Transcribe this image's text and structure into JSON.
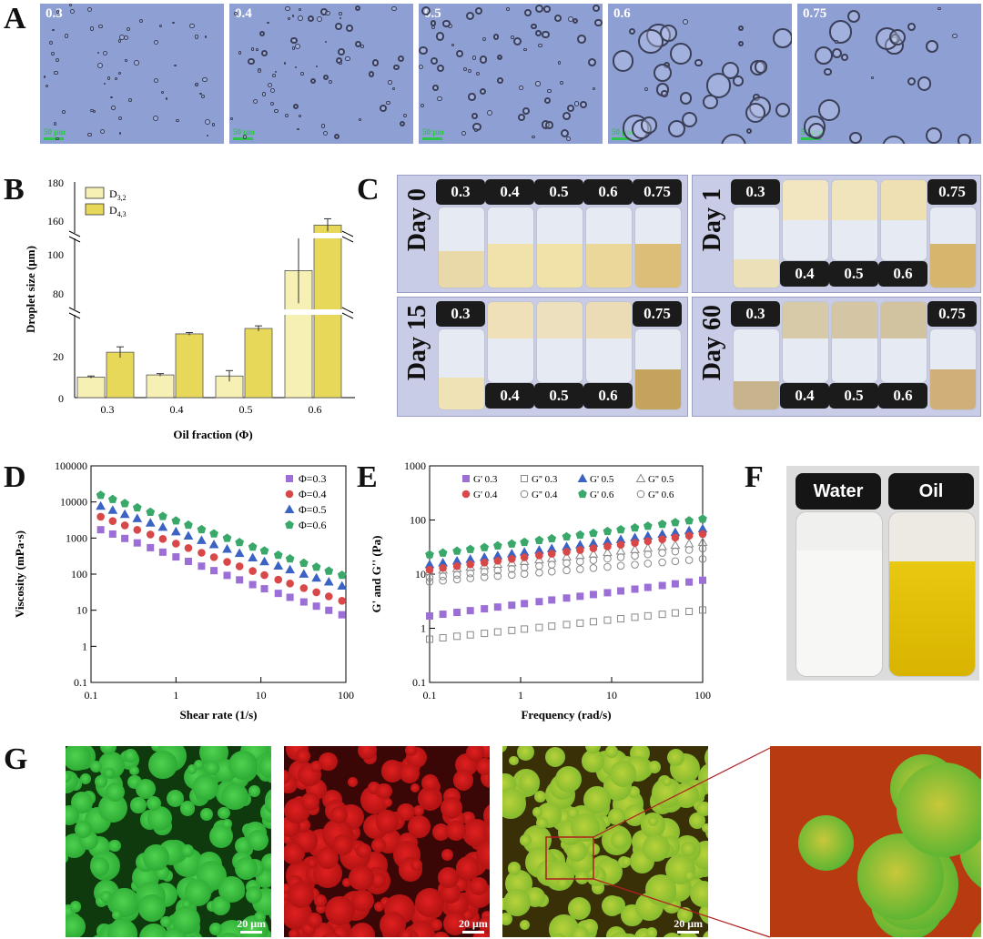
{
  "figure": {
    "panel_labels": {
      "a": "A",
      "b": "B",
      "c": "C",
      "d": "D",
      "e": "E",
      "f": "F",
      "g": "G"
    },
    "panel_a": {
      "images": [
        {
          "label": "0.3",
          "scale_bar": "50 μm"
        },
        {
          "label": "0.4",
          "scale_bar": "50 μm"
        },
        {
          "label": "0.5",
          "scale_bar": "50 μm"
        },
        {
          "label": "0.6",
          "scale_bar": "50 μm"
        },
        {
          "label": "0.75",
          "scale_bar": "50 μm"
        }
      ]
    },
    "panel_c": {
      "groups": [
        {
          "day": "Day 0",
          "caps": [
            "0.3",
            "0.4",
            "0.5",
            "0.6",
            "0.75"
          ]
        },
        {
          "day": "Day 1",
          "caps": [
            "0.3",
            "0.4",
            "0.5",
            "0.6",
            "0.75"
          ]
        },
        {
          "day": "Day 15",
          "caps": [
            "0.3",
            "0.4",
            "0.5",
            "0.6",
            "0.75"
          ]
        },
        {
          "day": "Day 60",
          "caps": [
            "0.3",
            "0.4",
            "0.5",
            "0.6",
            "0.75"
          ]
        }
      ]
    },
    "panel_f": {
      "water": "Water",
      "oil": "Oil"
    },
    "panel_g": {
      "scale_bars": [
        "20 μm",
        "20 μm",
        "20 μm"
      ]
    },
    "colors": {
      "micro_bg": "#8e9fd4",
      "bar_d32": "#f6f0b4",
      "bar_d43": "#e8d85a",
      "green": "#2aa43a",
      "red": "#c41212"
    }
  },
  "chart_data": [
    {
      "id": "B",
      "type": "bar",
      "xlabel": "Oil fraction (Φ)",
      "ylabel": "Droplet size (μm)",
      "categories": [
        "0.3",
        "0.4",
        "0.5",
        "0.6"
      ],
      "legend": [
        "D3,2",
        "D4,3"
      ],
      "series": [
        {
          "name": "D3,2",
          "values": [
            9.5,
            10.5,
            10,
            89
          ],
          "errors": [
            0.5,
            0.6,
            2.5,
            15
          ]
        },
        {
          "name": "D4,3",
          "values": [
            21,
            29.5,
            32,
            160
          ],
          "errors": [
            2.5,
            0.6,
            1.2,
            3
          ]
        }
      ],
      "yticks": [
        "0",
        "20",
        "80",
        "100",
        "160",
        "180"
      ],
      "ylim_segments": [
        [
          0,
          40
        ],
        [
          70,
          105
        ],
        [
          155,
          180
        ]
      ]
    },
    {
      "id": "D",
      "type": "scatter",
      "xlabel": "Shear rate (1/s)",
      "ylabel": "Viscosity (mPa·s)",
      "xscale": "log",
      "yscale": "log",
      "xlim": [
        0.1,
        100
      ],
      "ylim": [
        0.1,
        100000
      ],
      "xticks": [
        "0.1",
        "1",
        "10",
        "100"
      ],
      "yticks": [
        "0.1",
        "1",
        "10",
        "100",
        "1000",
        "10000",
        "100000"
      ],
      "series": [
        {
          "name": "Φ=0.3",
          "color": "#9b6fd6",
          "marker": "square",
          "a": 300,
          "n": -0.85
        },
        {
          "name": "Φ=0.4",
          "color": "#d94848",
          "marker": "circle",
          "a": 700,
          "n": -0.84
        },
        {
          "name": "Φ=0.5",
          "color": "#3b63c4",
          "marker": "triangle",
          "a": 1500,
          "n": -0.8
        },
        {
          "name": "Φ=0.6",
          "color": "#3aa86a",
          "marker": "pentagon",
          "a": 3000,
          "n": -0.8
        }
      ],
      "x_points": [
        0.13,
        0.18,
        0.25,
        0.35,
        0.5,
        0.7,
        1,
        1.4,
        2,
        2.8,
        4,
        5.6,
        8,
        11,
        16,
        22,
        32,
        45,
        63,
        90
      ]
    },
    {
      "id": "E",
      "type": "scatter",
      "xlabel": "Frequency (rad/s)",
      "ylabel": "G' and G'' (Pa)",
      "xscale": "log",
      "yscale": "log",
      "xlim": [
        0.1,
        100
      ],
      "ylim": [
        0.1,
        1000
      ],
      "xticks": [
        "0.1",
        "1",
        "10",
        "100"
      ],
      "yticks": [
        "0.1",
        "1",
        "10",
        "100",
        "1000"
      ],
      "series": [
        {
          "name": "G' 0.3",
          "color": "#9b6fd6",
          "marker": "square",
          "filled": true,
          "a": 2.8,
          "n": 0.22
        },
        {
          "name": "G'' 0.3",
          "color": "#888888",
          "marker": "square",
          "filled": false,
          "a": 0.95,
          "n": 0.18
        },
        {
          "name": "G' 0.5",
          "color": "#3b63c4",
          "marker": "triangle",
          "filled": true,
          "a": 25,
          "n": 0.22
        },
        {
          "name": "G'' 0.5",
          "color": "#888888",
          "marker": "triangle",
          "filled": false,
          "a": 17,
          "n": 0.18
        },
        {
          "name": "G' 0.4",
          "color": "#d94848",
          "marker": "circle",
          "filled": true,
          "a": 20,
          "n": 0.22
        },
        {
          "name": "G'' 0.4",
          "color": "#888888",
          "marker": "circle",
          "filled": false,
          "a": 10,
          "n": 0.14
        },
        {
          "name": "G' 0.6",
          "color": "#3aa86a",
          "marker": "pentagon",
          "filled": true,
          "a": 38,
          "n": 0.22
        },
        {
          "name": "G'' 0.6",
          "color": "#888888",
          "marker": "circle",
          "filled": false,
          "a": 13,
          "n": 0.18
        }
      ],
      "x_points": [
        0.1,
        0.14,
        0.2,
        0.28,
        0.4,
        0.56,
        0.8,
        1.1,
        1.6,
        2.2,
        3.2,
        4.5,
        6.3,
        9,
        12.6,
        18,
        25,
        36,
        50,
        71,
        100
      ]
    }
  ]
}
